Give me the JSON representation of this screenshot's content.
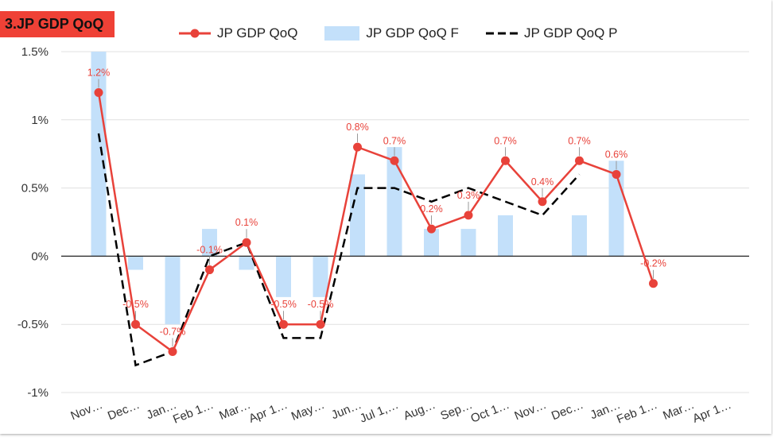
{
  "chart_data": {
    "type": "line",
    "title": "3.JP GDP QoQ",
    "categories": [
      "Nov…",
      "Dec…",
      "Jan…",
      "Feb 1…",
      "Mar…",
      "Apr 1…",
      "May…",
      "Jun…",
      "Jul 1,…",
      "Aug…",
      "Sep…",
      "Oct 1…",
      "Nov…",
      "Dec…",
      "Jan…",
      "Feb 1…",
      "Mar…",
      "Apr 1…"
    ],
    "y_ticks": [
      "1.5%",
      "1%",
      "0.5%",
      "0%",
      "-0.5%",
      "-1%"
    ],
    "ylim": [
      -1,
      1.5
    ],
    "series": [
      {
        "name": "JP GDP QoQ",
        "kind": "line",
        "color": "#e8423a",
        "values": [
          1.2,
          -0.5,
          -0.7,
          -0.1,
          0.1,
          -0.5,
          -0.5,
          0.8,
          0.7,
          0.2,
          0.3,
          0.7,
          0.4,
          0.7,
          0.6,
          -0.2,
          null,
          null
        ],
        "labels": [
          "1.2%",
          "-0.5%",
          "-0.7%",
          "-0.1%",
          "0.1%",
          "-0.5%",
          "-0.5%",
          "0.8%",
          "0.7%",
          "0.2%",
          "0.3%",
          "0.7%",
          "0.4%",
          "0.7%",
          "0.6%",
          "-0.2%",
          "",
          ""
        ]
      },
      {
        "name": "JP GDP QoQ F",
        "kind": "bar",
        "color": "#c3e0fa",
        "values": [
          1.5,
          -0.1,
          -0.5,
          0.2,
          -0.1,
          -0.3,
          -0.3,
          0.6,
          0.8,
          0.2,
          0.2,
          0.3,
          null,
          0.3,
          0.7,
          null,
          null,
          null
        ]
      },
      {
        "name": "JP GDP QoQ P",
        "kind": "dashed",
        "color": "#000000",
        "values": [
          0.9,
          -0.8,
          -0.7,
          0.0,
          0.1,
          -0.6,
          -0.6,
          0.5,
          0.5,
          0.4,
          0.5,
          0.4,
          0.3,
          0.6,
          null,
          null,
          null,
          null
        ]
      }
    ],
    "legend_position": "top-center",
    "grid": true
  }
}
